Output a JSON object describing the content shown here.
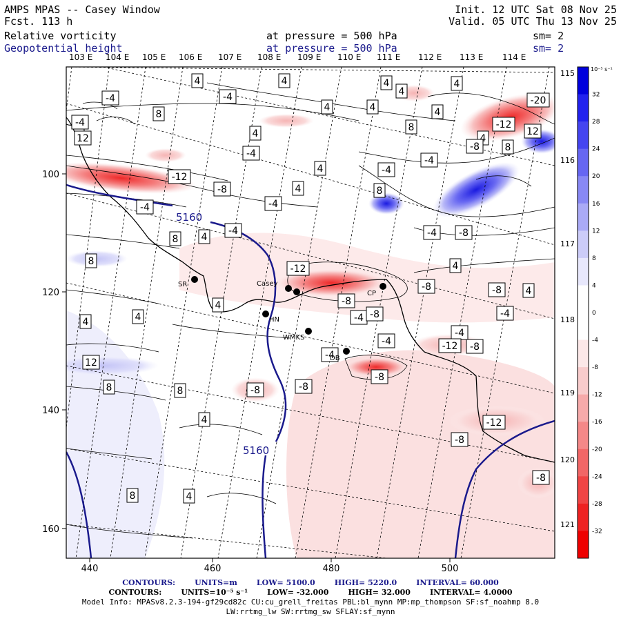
{
  "header": {
    "title": "AMPS MPAS -- Casey Window",
    "fcst": "Fcst. 113 h",
    "init": "Init. 12 UTC Sat 08 Nov 25",
    "valid": "Valid. 05 UTC Thu 13 Nov 25",
    "field1": {
      "name": "Relative vorticity",
      "level": "at pressure = 500 hPa",
      "sm": "sm= 2"
    },
    "field2": {
      "name": "Geopotential height",
      "level": "at pressure = 500 hPa",
      "sm": "sm= 2"
    }
  },
  "lon_labels": [
    "103 E",
    "104 E",
    "105 E",
    "106 E",
    "107 E",
    "108 E",
    "109 E",
    "110 E",
    "111 E",
    "112 E",
    "113 E",
    "114 E"
  ],
  "lat_labels": [
    "115 E",
    "116 E",
    "117 E",
    "118 E",
    "119 E",
    "120 E",
    "121 E"
  ],
  "x_ticks": [
    "440",
    "460",
    "480",
    "500"
  ],
  "y_ticks": [
    "100",
    "120",
    "140",
    "160"
  ],
  "colorbar": {
    "unit": "10⁻⁵ s⁻¹",
    "labels": [
      "32",
      "28",
      "24",
      "20",
      "16",
      "12",
      "8",
      "4",
      "0",
      "-4",
      "-8",
      "-12",
      "-16",
      "-20",
      "-24",
      "-28",
      "-32"
    ],
    "colors": [
      "#0000dd",
      "#2222ee",
      "#4444f0",
      "#6666f2",
      "#8888f4",
      "#aaaaf6",
      "#ccccf8",
      "#e8e8fc",
      "#ffffff",
      "#ffffff",
      "#fce8e8",
      "#f8cccc",
      "#f6aaaa",
      "#f48888",
      "#f26666",
      "#f04444",
      "#ee2222",
      "#ee0000"
    ]
  },
  "stations": [
    {
      "id": "SR",
      "label": "SR"
    },
    {
      "id": "casey",
      "label": "Casey"
    },
    {
      "id": "hn",
      "label": "HN"
    },
    {
      "id": "wmks",
      "label": "WMKS"
    },
    {
      "id": "cp",
      "label": "CP"
    },
    {
      "id": "db",
      "label": "DB"
    }
  ],
  "height_labels": [
    "5160",
    "5160"
  ],
  "contour_labels": [
    "4",
    "4",
    "4",
    "4",
    "4",
    "4",
    "4",
    "4",
    "4",
    "4",
    "4",
    "4",
    "4",
    "4",
    "4",
    "4",
    "4",
    "4",
    "4",
    "4",
    "-4",
    "-4",
    "-4",
    "-4",
    "-4",
    "-4",
    "-4",
    "-4",
    "-4",
    "-4",
    "-4",
    "-4",
    "-4",
    "-4",
    "-4",
    "8",
    "8",
    "8",
    "8",
    "8",
    "8",
    "8",
    "8",
    "8",
    "-8",
    "-8",
    "-8",
    "-8",
    "-8",
    "-8",
    "-8",
    "-8",
    "-8",
    "-8",
    "-8",
    "-8",
    "-8",
    "12",
    "12",
    "12",
    "-12",
    "-12",
    "-12",
    "-12",
    "-12",
    "-20"
  ],
  "footer": {
    "height_contours": {
      "label": "CONTOURS:",
      "units": "UNITS=m",
      "low": "LOW= 5100.0",
      "high": "HIGH= 5220.0",
      "interval": "INTERVAL= 60.000"
    },
    "vort_contours": {
      "label": "CONTOURS:",
      "units": "UNITS=10⁻⁵ s⁻¹",
      "low": "LOW= -32.000",
      "high": "HIGH= 32.000",
      "interval": "INTERVAL= 4.0000"
    },
    "model_info": "Model Info: MPASv8.2.3-194-gf29cd82c CU:cu_grell_freitas PBL:bl_mynn MP:mp_thompson SF:sf_noahmp 8.0",
    "model_info2": "LW:rrtmg_lw SW:rrtmg_sw SFLAY:sf_mynn"
  }
}
